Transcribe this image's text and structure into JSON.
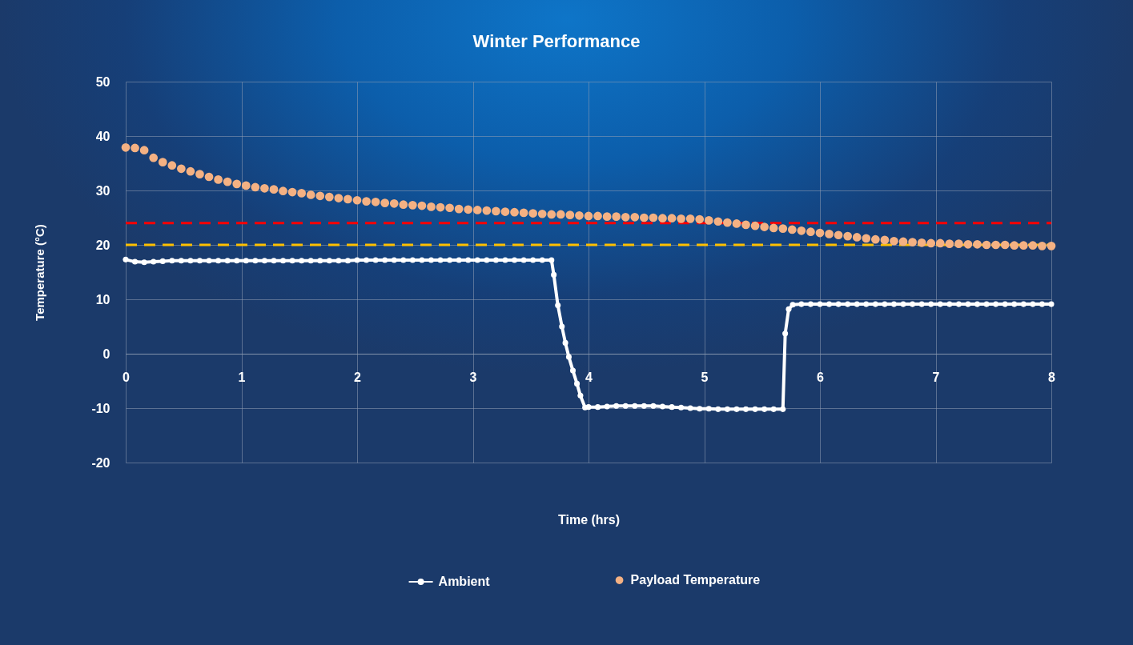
{
  "chart_data": {
    "type": "line",
    "title": "Winter Performance",
    "xlabel": "Time (hrs)",
    "ylabel": "Temperature (°C)",
    "xlim": [
      0,
      8
    ],
    "xticks": [
      0,
      1,
      2,
      3,
      4,
      5,
      6,
      7,
      8
    ],
    "ylim": [
      -20,
      50
    ],
    "yticks": [
      -20,
      -10,
      0,
      10,
      20,
      30,
      40,
      50
    ],
    "grid": true,
    "legend": "bottom",
    "marker": "circle",
    "line_style": "solid",
    "ref_lines": [
      {
        "axis": "y",
        "value": 24,
        "color": "#ff0000",
        "line_style": "dashed"
      },
      {
        "axis": "y",
        "value": 20,
        "color": "#ffc000",
        "line_style": "dashed"
      }
    ],
    "series": [
      {
        "name": "Ambient",
        "type": "line",
        "color": "#ffffff",
        "x": [
          0,
          0.08,
          0.16,
          0.24,
          0.32,
          0.4,
          0.48,
          0.56,
          0.64,
          0.72,
          0.8,
          0.88,
          0.96,
          1.04,
          1.12,
          1.2,
          1.28,
          1.36,
          1.44,
          1.52,
          1.6,
          1.68,
          1.76,
          1.84,
          1.92,
          2,
          2.08,
          2.16,
          2.24,
          2.32,
          2.4,
          2.48,
          2.56,
          2.64,
          2.72,
          2.8,
          2.88,
          2.96,
          3.04,
          3.12,
          3.2,
          3.28,
          3.36,
          3.44,
          3.52,
          3.6,
          3.68,
          3.7,
          3.735,
          3.77,
          3.8,
          3.83,
          3.865,
          3.9,
          3.93,
          3.97,
          4,
          4.08,
          4.16,
          4.24,
          4.32,
          4.4,
          4.48,
          4.56,
          4.64,
          4.72,
          4.8,
          4.88,
          4.96,
          5.04,
          5.12,
          5.2,
          5.28,
          5.36,
          5.44,
          5.52,
          5.6,
          5.68,
          5.7,
          5.73,
          5.765,
          5.84,
          5.92,
          6,
          6.08,
          6.16,
          6.24,
          6.32,
          6.4,
          6.48,
          6.56,
          6.64,
          6.72,
          6.8,
          6.88,
          6.96,
          7.04,
          7.12,
          7.2,
          7.28,
          7.36,
          7.44,
          7.52,
          7.6,
          7.68,
          7.76,
          7.84,
          7.92,
          8
        ],
        "values": [
          17.3,
          16.9,
          16.8,
          16.9,
          17.0,
          17.1,
          17.1,
          17.1,
          17.1,
          17.1,
          17.1,
          17.1,
          17.1,
          17.1,
          17.1,
          17.1,
          17.1,
          17.1,
          17.1,
          17.1,
          17.1,
          17.1,
          17.1,
          17.1,
          17.1,
          17.2,
          17.2,
          17.2,
          17.2,
          17.2,
          17.2,
          17.2,
          17.2,
          17.2,
          17.2,
          17.2,
          17.2,
          17.2,
          17.2,
          17.2,
          17.2,
          17.2,
          17.2,
          17.2,
          17.2,
          17.2,
          17.2,
          14.5,
          8.9,
          5.0,
          2.0,
          -0.6,
          -3.1,
          -5.5,
          -7.7,
          -9.9,
          -9.8,
          -9.8,
          -9.7,
          -9.6,
          -9.6,
          -9.6,
          -9.6,
          -9.6,
          -9.7,
          -9.8,
          -9.9,
          -10.0,
          -10.1,
          -10.1,
          -10.2,
          -10.2,
          -10.2,
          -10.2,
          -10.2,
          -10.2,
          -10.2,
          -10.2,
          3.7,
          8.2,
          9.0,
          9.1,
          9.1,
          9.1,
          9.1,
          9.1,
          9.1,
          9.1,
          9.1,
          9.1,
          9.1,
          9.1,
          9.1,
          9.1,
          9.1,
          9.1,
          9.1,
          9.1,
          9.1,
          9.1,
          9.1,
          9.1,
          9.1,
          9.1,
          9.1,
          9.1,
          9.1,
          9.1,
          9.1
        ]
      },
      {
        "name": "Payload Temperature",
        "type": "scatter",
        "color": "#f4b183",
        "x": [
          0,
          0.08,
          0.16,
          0.24,
          0.32,
          0.4,
          0.48,
          0.56,
          0.64,
          0.72,
          0.8,
          0.88,
          0.96,
          1.04,
          1.12,
          1.2,
          1.28,
          1.36,
          1.44,
          1.52,
          1.6,
          1.68,
          1.76,
          1.84,
          1.92,
          2,
          2.08,
          2.16,
          2.24,
          2.32,
          2.4,
          2.48,
          2.56,
          2.64,
          2.72,
          2.8,
          2.88,
          2.96,
          3.04,
          3.12,
          3.2,
          3.28,
          3.36,
          3.44,
          3.52,
          3.6,
          3.68,
          3.76,
          3.84,
          3.92,
          4,
          4.08,
          4.16,
          4.24,
          4.32,
          4.4,
          4.48,
          4.56,
          4.64,
          4.72,
          4.8,
          4.88,
          4.96,
          5.04,
          5.12,
          5.2,
          5.28,
          5.36,
          5.44,
          5.52,
          5.6,
          5.68,
          5.76,
          5.84,
          5.92,
          6,
          6.08,
          6.16,
          6.24,
          6.32,
          6.4,
          6.48,
          6.56,
          6.64,
          6.72,
          6.8,
          6.88,
          6.96,
          7.04,
          7.12,
          7.2,
          7.28,
          7.36,
          7.44,
          7.52,
          7.6,
          7.68,
          7.76,
          7.84,
          7.92,
          8
        ],
        "values": [
          37.9,
          37.8,
          37.4,
          36.0,
          35.2,
          34.6,
          34.0,
          33.5,
          33.0,
          32.5,
          32.0,
          31.6,
          31.2,
          30.9,
          30.6,
          30.4,
          30.2,
          29.9,
          29.7,
          29.5,
          29.2,
          29.0,
          28.8,
          28.6,
          28.4,
          28.2,
          28.0,
          27.9,
          27.7,
          27.6,
          27.4,
          27.3,
          27.2,
          27.0,
          26.9,
          26.8,
          26.6,
          26.5,
          26.4,
          26.3,
          26.2,
          26.1,
          26.0,
          25.9,
          25.8,
          25.7,
          25.6,
          25.6,
          25.5,
          25.4,
          25.3,
          25.3,
          25.2,
          25.2,
          25.1,
          25.1,
          25.0,
          25.0,
          24.9,
          24.9,
          24.8,
          24.8,
          24.7,
          24.5,
          24.3,
          24.1,
          23.9,
          23.7,
          23.5,
          23.3,
          23.1,
          23.0,
          22.8,
          22.6,
          22.4,
          22.2,
          22.0,
          21.8,
          21.6,
          21.4,
          21.2,
          21.0,
          20.9,
          20.7,
          20.6,
          20.5,
          20.4,
          20.3,
          20.3,
          20.2,
          20.2,
          20.1,
          20.1,
          20.0,
          20.0,
          20.0,
          19.9,
          19.9,
          19.9,
          19.8,
          19.8
        ]
      }
    ]
  }
}
